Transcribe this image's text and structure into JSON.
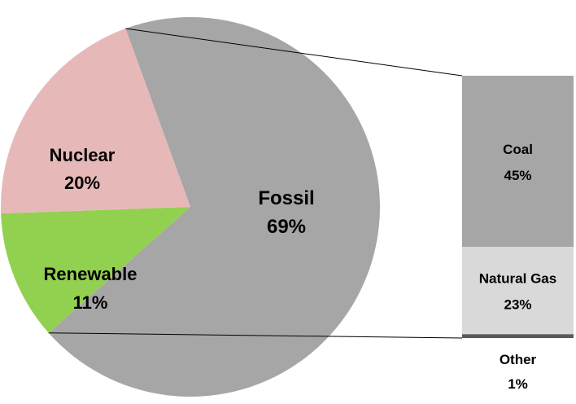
{
  "chart_data": {
    "type": "bar-of-pie",
    "pie": {
      "slices": [
        {
          "key": "fossil",
          "label": "Fossil",
          "value": 69,
          "value_label": "69%",
          "color": "#A6A6A6"
        },
        {
          "key": "renewable",
          "label": "Renewable",
          "value": 11,
          "value_label": "11%",
          "color": "#92D050"
        },
        {
          "key": "nuclear",
          "label": "Nuclear",
          "value": 20,
          "value_label": "20%",
          "color": "#E6B9B8"
        }
      ],
      "expanded_slice": "fossil"
    },
    "bar": {
      "segments": [
        {
          "key": "coal",
          "label": "Coal",
          "value": 45,
          "value_label": "45%",
          "color": "#A6A6A6"
        },
        {
          "key": "natural-gas",
          "label": "Natural Gas",
          "value": 23,
          "value_label": "23%",
          "color": "#D9D9D9"
        },
        {
          "key": "other",
          "label": "Other",
          "value": 1,
          "value_label": "1%",
          "color": "#595959"
        }
      ]
    },
    "connector_color": "#000000"
  }
}
